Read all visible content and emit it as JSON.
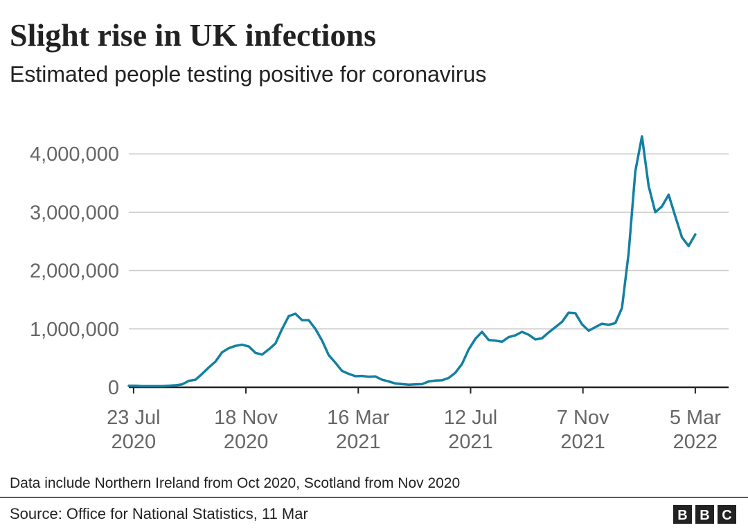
{
  "chart_data": {
    "type": "line",
    "title": "Slight rise in UK infections",
    "subtitle": "Estimated people testing positive for coronavirus",
    "note": "Data include Northern Ireland from Oct 2020, Scotland from Nov 2020",
    "source": "Source: Office for National Statistics, 11 Mar",
    "logo": [
      "B",
      "B",
      "C"
    ],
    "color": "#1380a1",
    "x": [
      "2020-07-18",
      "2020-07-25",
      "2020-08-01",
      "2020-08-08",
      "2020-08-15",
      "2020-08-22",
      "2020-08-29",
      "2020-09-05",
      "2020-09-12",
      "2020-09-19",
      "2020-09-26",
      "2020-10-03",
      "2020-10-10",
      "2020-10-17",
      "2020-10-24",
      "2020-10-31",
      "2020-11-07",
      "2020-11-14",
      "2020-11-21",
      "2020-11-28",
      "2020-12-05",
      "2020-12-12",
      "2020-12-19",
      "2020-12-26",
      "2021-01-02",
      "2021-01-09",
      "2021-01-16",
      "2021-01-23",
      "2021-01-30",
      "2021-02-06",
      "2021-02-13",
      "2021-02-20",
      "2021-02-27",
      "2021-03-06",
      "2021-03-13",
      "2021-03-20",
      "2021-03-27",
      "2021-04-03",
      "2021-04-10",
      "2021-04-17",
      "2021-04-24",
      "2021-05-01",
      "2021-05-08",
      "2021-05-15",
      "2021-05-22",
      "2021-05-29",
      "2021-06-05",
      "2021-06-12",
      "2021-06-19",
      "2021-06-26",
      "2021-07-03",
      "2021-07-10",
      "2021-07-17",
      "2021-07-24",
      "2021-07-31",
      "2021-08-07",
      "2021-08-14",
      "2021-08-21",
      "2021-08-28",
      "2021-09-04",
      "2021-09-11",
      "2021-09-18",
      "2021-09-25",
      "2021-10-02",
      "2021-10-09",
      "2021-10-16",
      "2021-10-23",
      "2021-10-30",
      "2021-11-06",
      "2021-11-13",
      "2021-11-20",
      "2021-11-27",
      "2021-12-04",
      "2021-12-11",
      "2021-12-18",
      "2021-12-25",
      "2022-01-01",
      "2022-01-08",
      "2022-01-15",
      "2022-01-22",
      "2022-01-29",
      "2022-02-05",
      "2022-02-12",
      "2022-02-19",
      "2022-02-26",
      "2022-03-05"
    ],
    "values": [
      25000,
      25000,
      20000,
      20000,
      20000,
      20000,
      25000,
      35000,
      50000,
      110000,
      130000,
      230000,
      340000,
      440000,
      600000,
      670000,
      710000,
      730000,
      700000,
      590000,
      560000,
      650000,
      750000,
      1000000,
      1220000,
      1260000,
      1150000,
      1150000,
      1000000,
      800000,
      550000,
      420000,
      280000,
      230000,
      190000,
      195000,
      180000,
      185000,
      130000,
      100000,
      65000,
      55000,
      45000,
      50000,
      55000,
      100000,
      115000,
      120000,
      160000,
      250000,
      400000,
      650000,
      830000,
      950000,
      810000,
      800000,
      780000,
      860000,
      890000,
      950000,
      900000,
      820000,
      840000,
      940000,
      1030000,
      1120000,
      1280000,
      1270000,
      1080000,
      970000,
      1030000,
      1090000,
      1070000,
      1100000,
      1360000,
      2300000,
      3700000,
      4300000,
      3450000,
      3000000,
      3100000,
      3300000,
      2930000,
      2570000,
      2420000,
      2620000
    ],
    "xlim": [
      "2020-07-18",
      "2022-04-09"
    ],
    "xticks": [
      {
        "value": "2020-07-23",
        "label": "23 Jul 2020"
      },
      {
        "value": "2020-11-18",
        "label": "18 Nov 2020"
      },
      {
        "value": "2021-03-16",
        "label": "16 Mar 2021"
      },
      {
        "value": "2021-07-12",
        "label": "12 Jul 2021"
      },
      {
        "value": "2021-11-07",
        "label": "7 Nov 2021"
      },
      {
        "value": "2022-03-05",
        "label": "5 Mar 2022"
      }
    ],
    "ylim": [
      0,
      4500000
    ],
    "yticks": [
      0,
      {
        "value": 1000000,
        "label": "1,000,000"
      },
      {
        "value": 2000000,
        "label": "2,000,000"
      },
      {
        "value": 3000000,
        "label": "3,000,000"
      },
      {
        "value": 4000000,
        "label": "4,000,000"
      }
    ],
    "grid": true
  }
}
